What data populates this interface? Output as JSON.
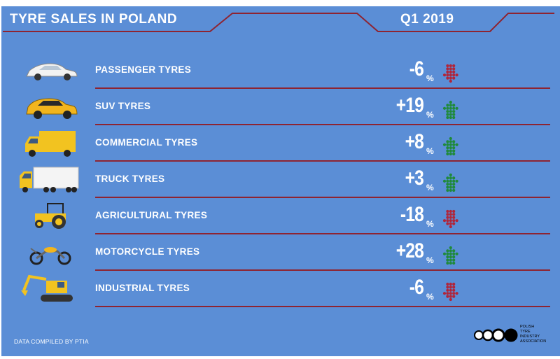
{
  "header": {
    "title": "TYRE SALES IN POLAND",
    "period": "Q1 2019"
  },
  "colors": {
    "background": "#5b8ed6",
    "line": "#8e2432",
    "up": "#1f8a3a",
    "down": "#b0253a",
    "text": "#ffffff"
  },
  "chart_data": {
    "type": "table",
    "title": "TYRE SALES IN POLAND",
    "subtitle": "Q1 2019",
    "unit": "%",
    "categories": [
      "PASSENGER TYRES",
      "SUV TYRES",
      "COMMERCIAL TYRES",
      "TRUCK TYRES",
      "AGRICULTURAL TYRES",
      "MOTORCYCLE TYRES",
      "INDUSTRIAL TYRES"
    ],
    "values": [
      -6,
      19,
      8,
      3,
      -18,
      28,
      -6
    ],
    "rows": [
      {
        "label": "PASSENGER TYRES",
        "value_text": "-6",
        "direction": "down",
        "icon": "car-icon"
      },
      {
        "label": "SUV TYRES",
        "value_text": "+19",
        "direction": "up",
        "icon": "suv-icon"
      },
      {
        "label": "COMMERCIAL TYRES",
        "value_text": "+8",
        "direction": "up",
        "icon": "van-icon"
      },
      {
        "label": "TRUCK TYRES",
        "value_text": "+3",
        "direction": "up",
        "icon": "truck-icon"
      },
      {
        "label": "AGRICULTURAL TYRES",
        "value_text": "-18",
        "direction": "down",
        "icon": "tractor-icon"
      },
      {
        "label": "MOTORCYCLE TYRES",
        "value_text": "+28",
        "direction": "up",
        "icon": "motorcycle-icon"
      },
      {
        "label": "INDUSTRIAL TYRES",
        "value_text": "-6",
        "direction": "down",
        "icon": "excavator-icon"
      }
    ]
  },
  "footer": {
    "source": "DATA COMPILED BY PTIA",
    "logo_lines": [
      "POLISH",
      "TYRE",
      "INDUSTRY",
      "ASSOCIATION"
    ]
  }
}
